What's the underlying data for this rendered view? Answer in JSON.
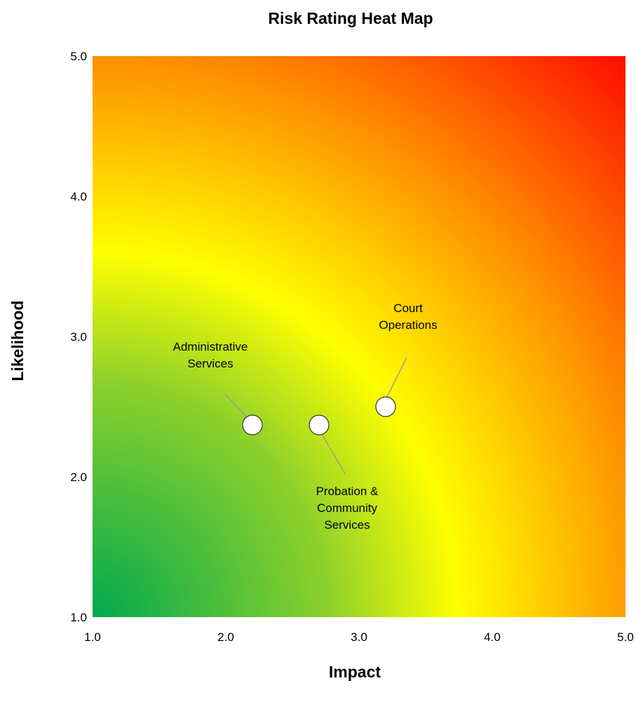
{
  "chart_data": {
    "type": "scatter",
    "title": "Risk Rating Heat Map",
    "xlabel": "Impact",
    "ylabel": "Likelihood",
    "xlim": [
      1.0,
      5.0
    ],
    "ylim": [
      1.0,
      5.0
    ],
    "x_ticks": [
      "1.0",
      "2.0",
      "3.0",
      "4.0",
      "5.0"
    ],
    "y_ticks": [
      "1.0",
      "2.0",
      "3.0",
      "4.0",
      "5.0"
    ],
    "grid": false,
    "background": "heat map gradient from green (low impact, low likelihood) through yellow to red (high impact, high likelihood)",
    "colors": {
      "low": "#00a94f",
      "mid": "#ffff00",
      "high": "#ff0000"
    },
    "points": [
      {
        "label": [
          "Administrative",
          "Services"
        ],
        "x": 2.2,
        "y": 2.37
      },
      {
        "label": [
          "Probation &",
          "Community",
          "Services"
        ],
        "x": 2.7,
        "y": 2.37
      },
      {
        "label": [
          "Court",
          "Operations"
        ],
        "x": 3.2,
        "y": 2.5
      }
    ]
  }
}
